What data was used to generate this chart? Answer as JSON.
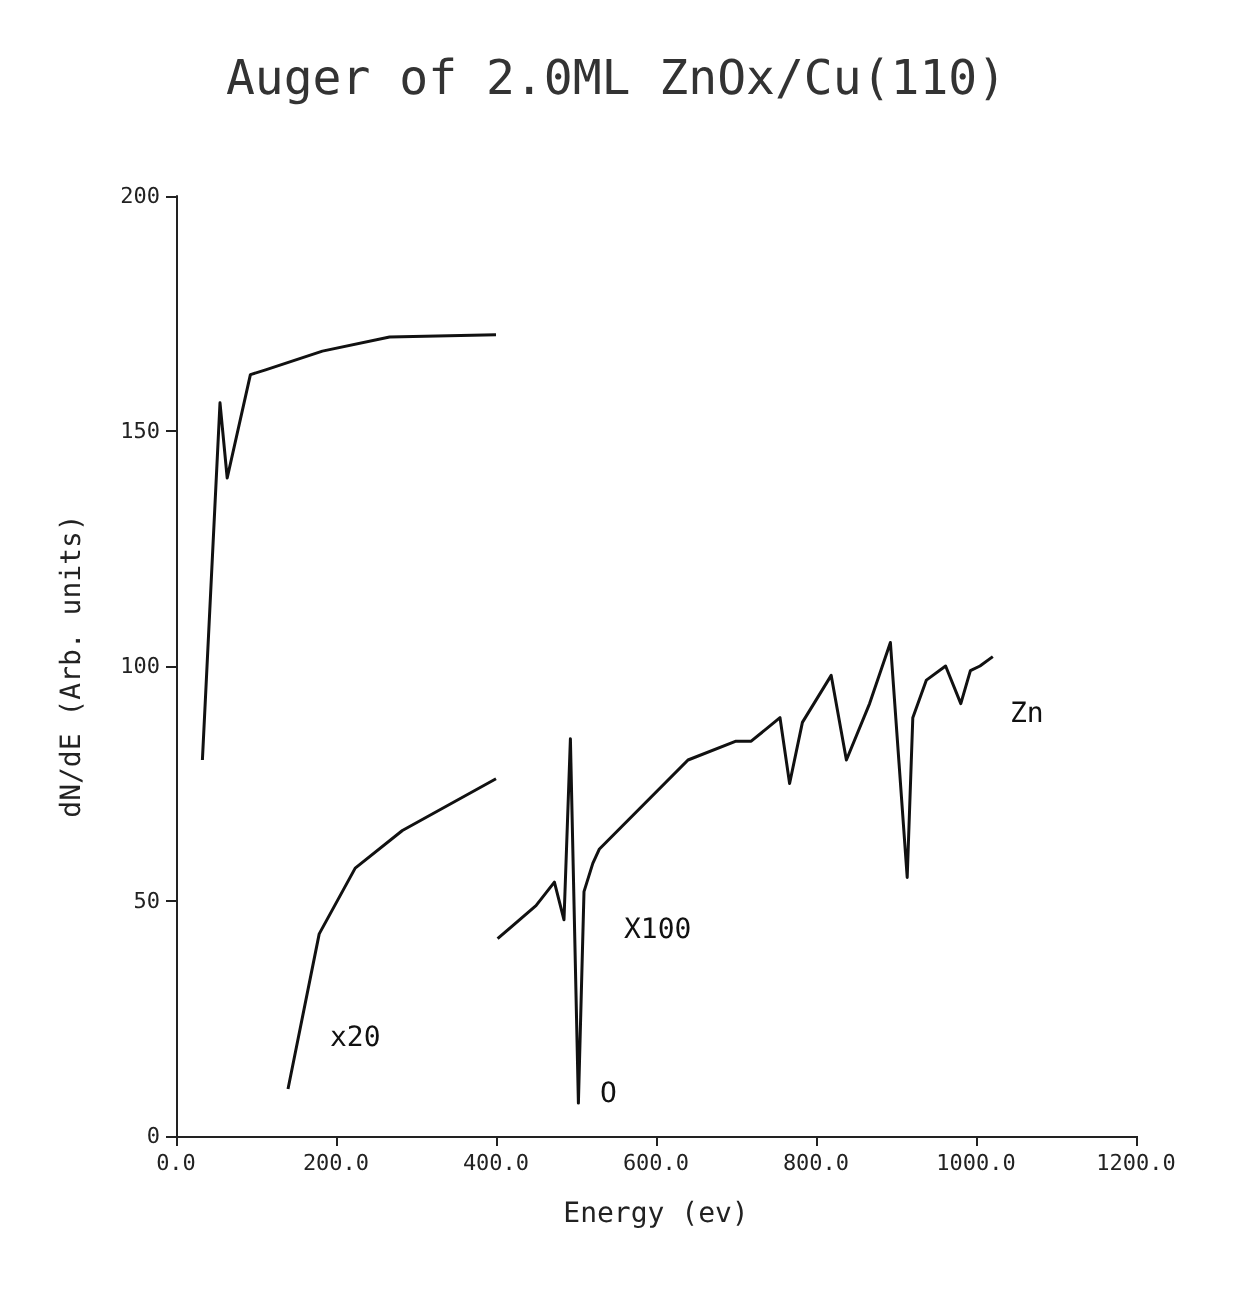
{
  "chart_data": {
    "type": "line",
    "title": "Auger of 2.0ML ZnOx/Cu(110)",
    "xlabel": "Energy (ev)",
    "ylabel": "dN/dE (Arb. units)",
    "xlim": [
      0,
      1200
    ],
    "xticks": [
      {
        "value": 0,
        "label": "0.0"
      },
      {
        "value": 200,
        "label": "200.0"
      },
      {
        "value": 400,
        "label": "400.0"
      },
      {
        "value": 600,
        "label": "600.0"
      },
      {
        "value": 800,
        "label": "800.0"
      },
      {
        "value": 1000,
        "label": "1000.0"
      },
      {
        "value": 1200,
        "label": "1200.0"
      }
    ],
    "ylim": [
      0,
      200
    ],
    "yticks": [
      0,
      50,
      100,
      150,
      200
    ],
    "grid": false,
    "marker": "none",
    "line_style": "solid",
    "series": [
      {
        "color": "#111111",
        "x": [
          33,
          55,
          64,
          93,
          112,
          183,
          267,
          400
        ],
        "values": [
          80,
          156,
          140,
          162,
          163,
          167,
          170,
          170.5
        ]
      },
      {
        "color": "#111111",
        "x": [
          140,
          179,
          224,
          283,
          400
        ],
        "values": [
          10,
          43,
          57,
          65,
          76
        ]
      },
      {
        "color": "#111111",
        "x": [
          402,
          450,
          473,
          485,
          493,
          503,
          510,
          521,
          529,
          640,
          700,
          719,
          755,
          767,
          783,
          819,
          838,
          867,
          893,
          914,
          921,
          938,
          962,
          981,
          993,
          1005,
          1021
        ],
        "values": [
          42,
          49,
          54,
          46,
          84.5,
          7,
          52,
          58,
          61,
          80,
          84,
          84,
          89,
          75,
          88,
          98,
          80,
          92,
          105,
          55,
          89,
          97,
          100,
          92,
          99,
          100,
          102
        ]
      }
    ],
    "annotations": [
      "x20",
      "X100",
      "O",
      "Zn"
    ]
  }
}
